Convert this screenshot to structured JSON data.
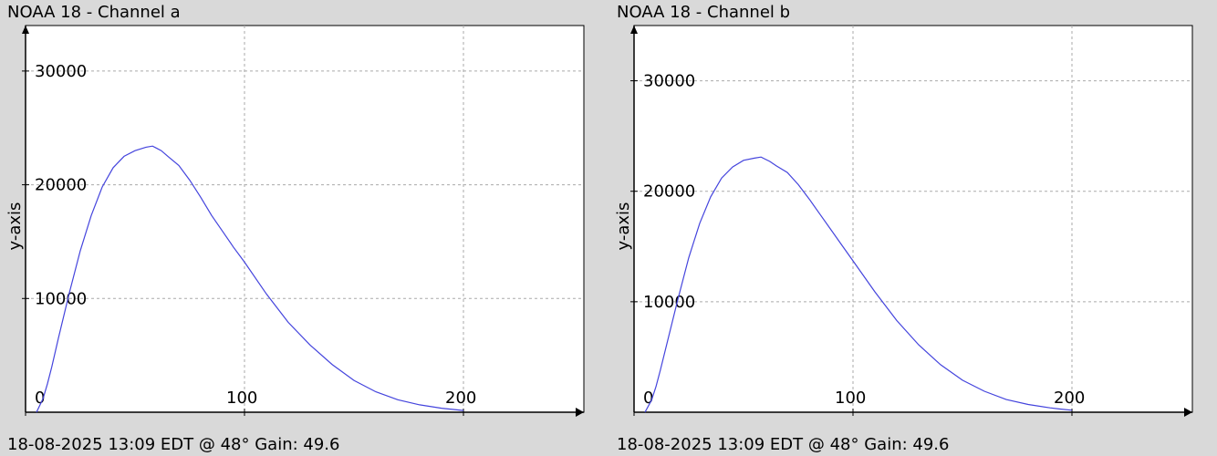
{
  "chart_data": [
    {
      "type": "line",
      "title": "NOAA 18 - Channel a",
      "xlabel": "",
      "ylabel": "y-axis",
      "xlim": [
        0,
        255
      ],
      "ylim": [
        0,
        34000
      ],
      "xticks": [
        0,
        100,
        200
      ],
      "yticks": [
        10000,
        20000,
        30000
      ],
      "xtick_labels": [
        "0",
        "100",
        "200"
      ],
      "ytick_labels": [
        "10000",
        "20000",
        "30000"
      ],
      "grid": true,
      "footer": "18-08-2025 13:09 EDT @ 48° Gain: 49.6",
      "series": [
        {
          "color": "#4444dd",
          "x": [
            5,
            8,
            10,
            12,
            15,
            20,
            25,
            30,
            35,
            40,
            45,
            50,
            55,
            58,
            60,
            62,
            65,
            70,
            75,
            80,
            85,
            90,
            95,
            100,
            110,
            120,
            130,
            140,
            150,
            160,
            170,
            180,
            190,
            195,
            200
          ],
          "y": [
            0,
            1200,
            2500,
            4000,
            6500,
            10500,
            14200,
            17300,
            19800,
            21500,
            22500,
            23000,
            23300,
            23400,
            23200,
            23000,
            22500,
            21700,
            20400,
            18900,
            17300,
            15900,
            14500,
            13200,
            10400,
            7900,
            5900,
            4200,
            2800,
            1800,
            1100,
            650,
            350,
            250,
            150
          ]
        }
      ]
    },
    {
      "type": "line",
      "title": "NOAA 18 - Channel b",
      "xlabel": "",
      "ylabel": "y-axis",
      "xlim": [
        0,
        255
      ],
      "ylim": [
        0,
        35000
      ],
      "xticks": [
        0,
        100,
        200
      ],
      "yticks": [
        10000,
        20000,
        30000
      ],
      "xtick_labels": [
        "0",
        "100",
        "200"
      ],
      "ytick_labels": [
        "10000",
        "20000",
        "30000"
      ],
      "grid": true,
      "footer": "18-08-2025 13:09 EDT @ 48° Gain: 49.6",
      "series": [
        {
          "color": "#4444dd",
          "x": [
            5,
            8,
            10,
            12,
            15,
            20,
            25,
            30,
            35,
            40,
            45,
            50,
            55,
            58,
            60,
            62,
            65,
            70,
            75,
            80,
            85,
            90,
            95,
            100,
            110,
            120,
            130,
            140,
            150,
            160,
            170,
            180,
            190,
            195,
            200
          ],
          "y": [
            0,
            1100,
            2300,
            3800,
            6200,
            10200,
            14000,
            17100,
            19500,
            21200,
            22200,
            22800,
            23000,
            23100,
            22900,
            22700,
            22300,
            21700,
            20600,
            19300,
            17900,
            16500,
            15100,
            13700,
            10900,
            8300,
            6100,
            4300,
            2900,
            1900,
            1150,
            700,
            400,
            280,
            180
          ]
        }
      ]
    }
  ]
}
